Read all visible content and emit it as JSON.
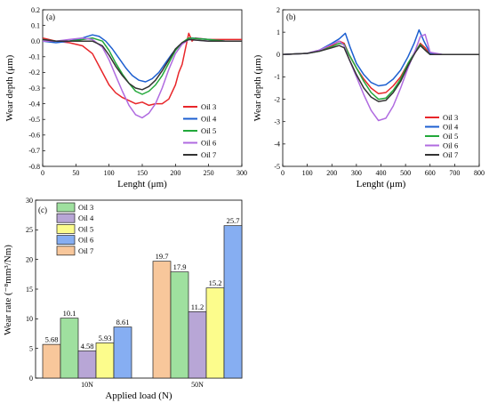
{
  "chart_data": [
    {
      "panel": "(a)",
      "type": "line",
      "xlabel": "Lenght (μm)",
      "ylabel": "Wear depth (μm)",
      "xlim": [
        0,
        300
      ],
      "ylim": [
        -0.8,
        0.2
      ],
      "xticks": [
        0,
        50,
        100,
        150,
        200,
        250,
        300
      ],
      "yticks": [
        0.2,
        0.1,
        0.0,
        -0.1,
        -0.2,
        -0.3,
        -0.4,
        -0.5,
        -0.6,
        -0.7,
        -0.8
      ],
      "legend_position": "lower-right",
      "series": [
        {
          "name": "Oil 3",
          "color": "#e8262a",
          "x": [
            0,
            20,
            40,
            60,
            75,
            90,
            100,
            110,
            120,
            130,
            140,
            150,
            160,
            170,
            180,
            190,
            200,
            205,
            210,
            215,
            220,
            225,
            230,
            250,
            275,
            300
          ],
          "y": [
            0.02,
            0.0,
            -0.01,
            -0.03,
            -0.08,
            -0.2,
            -0.28,
            -0.33,
            -0.36,
            -0.38,
            -0.4,
            -0.39,
            -0.41,
            -0.4,
            -0.4,
            -0.37,
            -0.28,
            -0.2,
            -0.15,
            -0.05,
            0.05,
            0.0,
            0.02,
            0.01,
            0.01,
            0.01
          ]
        },
        {
          "name": "Oil 4",
          "color": "#1d5fd0",
          "x": [
            0,
            20,
            40,
            60,
            75,
            85,
            95,
            105,
            115,
            125,
            135,
            145,
            155,
            165,
            175,
            185,
            195,
            205,
            215,
            225,
            250,
            275,
            300
          ],
          "y": [
            0.0,
            -0.01,
            0.0,
            0.02,
            0.04,
            0.03,
            0.0,
            -0.05,
            -0.11,
            -0.17,
            -0.22,
            -0.25,
            -0.26,
            -0.24,
            -0.2,
            -0.14,
            -0.08,
            -0.03,
            0.0,
            0.02,
            0.01,
            0.0,
            0.0
          ]
        },
        {
          "name": "Oil 5",
          "color": "#22a83a",
          "x": [
            0,
            20,
            40,
            60,
            75,
            90,
            100,
            110,
            120,
            130,
            140,
            150,
            160,
            170,
            180,
            190,
            200,
            210,
            220,
            250,
            275,
            300
          ],
          "y": [
            0.01,
            0.0,
            0.0,
            0.01,
            0.02,
            0.0,
            -0.06,
            -0.14,
            -0.21,
            -0.27,
            -0.32,
            -0.34,
            -0.32,
            -0.28,
            -0.22,
            -0.14,
            -0.06,
            -0.01,
            0.02,
            0.01,
            0.0,
            0.0
          ]
        },
        {
          "name": "Oil 6",
          "color": "#b06be0",
          "x": [
            0,
            20,
            40,
            60,
            75,
            90,
            100,
            110,
            120,
            130,
            140,
            150,
            160,
            170,
            180,
            190,
            200,
            210,
            220,
            250,
            275,
            300
          ],
          "y": [
            0.0,
            0.0,
            0.01,
            0.02,
            0.01,
            -0.04,
            -0.12,
            -0.22,
            -0.32,
            -0.41,
            -0.47,
            -0.49,
            -0.46,
            -0.4,
            -0.3,
            -0.18,
            -0.08,
            -0.02,
            0.01,
            0.0,
            0.0,
            0.0
          ]
        },
        {
          "name": "Oil 7",
          "color": "#333333",
          "x": [
            0,
            20,
            40,
            60,
            75,
            90,
            100,
            110,
            120,
            130,
            140,
            150,
            160,
            170,
            180,
            190,
            200,
            210,
            220,
            250,
            275,
            300
          ],
          "y": [
            0.01,
            0.0,
            0.0,
            0.0,
            0.0,
            -0.03,
            -0.09,
            -0.16,
            -0.22,
            -0.27,
            -0.3,
            -0.31,
            -0.29,
            -0.25,
            -0.19,
            -0.12,
            -0.05,
            -0.01,
            0.01,
            0.0,
            0.0,
            0.0
          ]
        }
      ]
    },
    {
      "panel": "(b)",
      "type": "line",
      "xlabel": "Lenght (μm)",
      "ylabel": "Wear depth (μm)",
      "xlim": [
        0,
        800
      ],
      "ylim": [
        -5,
        2
      ],
      "xticks": [
        0,
        100,
        200,
        300,
        400,
        500,
        600,
        700,
        800
      ],
      "yticks": [
        2,
        1,
        0,
        -1,
        -2,
        -3,
        -4,
        -5
      ],
      "legend_position": "lower-right",
      "series": [
        {
          "name": "Oil 3",
          "color": "#e8262a",
          "x": [
            0,
            100,
            150,
            200,
            230,
            250,
            270,
            300,
            330,
            360,
            390,
            420,
            450,
            480,
            510,
            540,
            560,
            580,
            600,
            650,
            700,
            800
          ],
          "y": [
            0.0,
            0.05,
            0.2,
            0.4,
            0.6,
            0.5,
            0.0,
            -0.6,
            -1.1,
            -1.5,
            -1.75,
            -1.7,
            -1.4,
            -1.0,
            -0.4,
            0.1,
            0.5,
            0.3,
            0.0,
            0.0,
            0.0,
            0.0
          ]
        },
        {
          "name": "Oil 4",
          "color": "#1d5fd0",
          "x": [
            0,
            100,
            150,
            200,
            230,
            255,
            275,
            300,
            330,
            360,
            390,
            420,
            450,
            480,
            510,
            535,
            555,
            575,
            600,
            650,
            700,
            800
          ],
          "y": [
            0.0,
            0.05,
            0.2,
            0.5,
            0.7,
            0.95,
            0.3,
            -0.4,
            -0.9,
            -1.25,
            -1.4,
            -1.35,
            -1.1,
            -0.7,
            -0.1,
            0.5,
            1.1,
            0.6,
            0.05,
            0.0,
            0.0,
            0.0
          ]
        },
        {
          "name": "Oil 5",
          "color": "#22a83a",
          "x": [
            0,
            100,
            150,
            200,
            230,
            250,
            270,
            300,
            330,
            360,
            390,
            420,
            450,
            480,
            510,
            540,
            560,
            580,
            600,
            650,
            700,
            800
          ],
          "y": [
            0.0,
            0.05,
            0.15,
            0.35,
            0.5,
            0.45,
            0.0,
            -0.6,
            -1.2,
            -1.7,
            -2.0,
            -1.95,
            -1.6,
            -1.1,
            -0.4,
            0.15,
            0.45,
            0.2,
            0.0,
            0.0,
            0.0,
            0.0
          ]
        },
        {
          "name": "Oil 6",
          "color": "#b06be0",
          "x": [
            0,
            100,
            150,
            200,
            230,
            250,
            270,
            300,
            330,
            360,
            390,
            420,
            450,
            480,
            510,
            540,
            560,
            580,
            600,
            650,
            700,
            800
          ],
          "y": [
            0.0,
            0.05,
            0.2,
            0.45,
            0.6,
            0.4,
            -0.2,
            -1.0,
            -1.8,
            -2.5,
            -2.95,
            -2.85,
            -2.3,
            -1.5,
            -0.6,
            0.2,
            0.8,
            0.9,
            0.1,
            0.0,
            0.0,
            0.0
          ]
        },
        {
          "name": "Oil 7",
          "color": "#333333",
          "x": [
            0,
            100,
            150,
            200,
            230,
            250,
            270,
            300,
            330,
            360,
            390,
            420,
            450,
            480,
            510,
            540,
            560,
            580,
            600,
            650,
            700,
            800
          ],
          "y": [
            0.0,
            0.05,
            0.15,
            0.3,
            0.4,
            0.3,
            -0.2,
            -0.9,
            -1.5,
            -1.9,
            -2.1,
            -2.05,
            -1.7,
            -1.2,
            -0.5,
            0.1,
            0.4,
            0.2,
            0.0,
            0.0,
            0.0,
            0.0
          ]
        }
      ]
    },
    {
      "panel": "(c)",
      "type": "bar",
      "xlabel": "Applied load (N)",
      "ylabel": "Wear rate (⁻⁸mm³/Nm)",
      "ylim": [
        0,
        30
      ],
      "yticks": [
        0,
        5,
        10,
        15,
        20,
        25,
        30
      ],
      "categories": [
        "10N",
        "50N"
      ],
      "legend_position": "top-left",
      "legend": [
        {
          "name": "Oil 3",
          "color": "#9fe09f"
        },
        {
          "name": "Oil 4",
          "color": "#b8a6d6"
        },
        {
          "name": "Oil 5",
          "color": "#fcfc8c"
        },
        {
          "name": "Oil 6",
          "color": "#86aef2"
        },
        {
          "name": "Oil 7",
          "color": "#f8c79b"
        }
      ],
      "bar_order": [
        "Oil 7",
        "Oil 3",
        "Oil 4",
        "Oil 5",
        "Oil 6"
      ],
      "series": [
        {
          "name": "Oil 7",
          "color": "#f8c79b",
          "values": [
            5.68,
            19.7
          ],
          "labels": [
            "5.68",
            "19.7"
          ]
        },
        {
          "name": "Oil 3",
          "color": "#9fe09f",
          "values": [
            10.1,
            17.9
          ],
          "labels": [
            "10.1",
            "17.9"
          ]
        },
        {
          "name": "Oil 4",
          "color": "#b8a6d6",
          "values": [
            4.58,
            11.2
          ],
          "labels": [
            "4.58",
            "11.2"
          ]
        },
        {
          "name": "Oil 5",
          "color": "#fcfc8c",
          "values": [
            5.93,
            15.2
          ],
          "labels": [
            "5.93",
            "15.2"
          ]
        },
        {
          "name": "Oil 6",
          "color": "#86aef2",
          "values": [
            8.61,
            25.7
          ],
          "labels": [
            "8.61",
            "25.7"
          ]
        }
      ]
    }
  ]
}
